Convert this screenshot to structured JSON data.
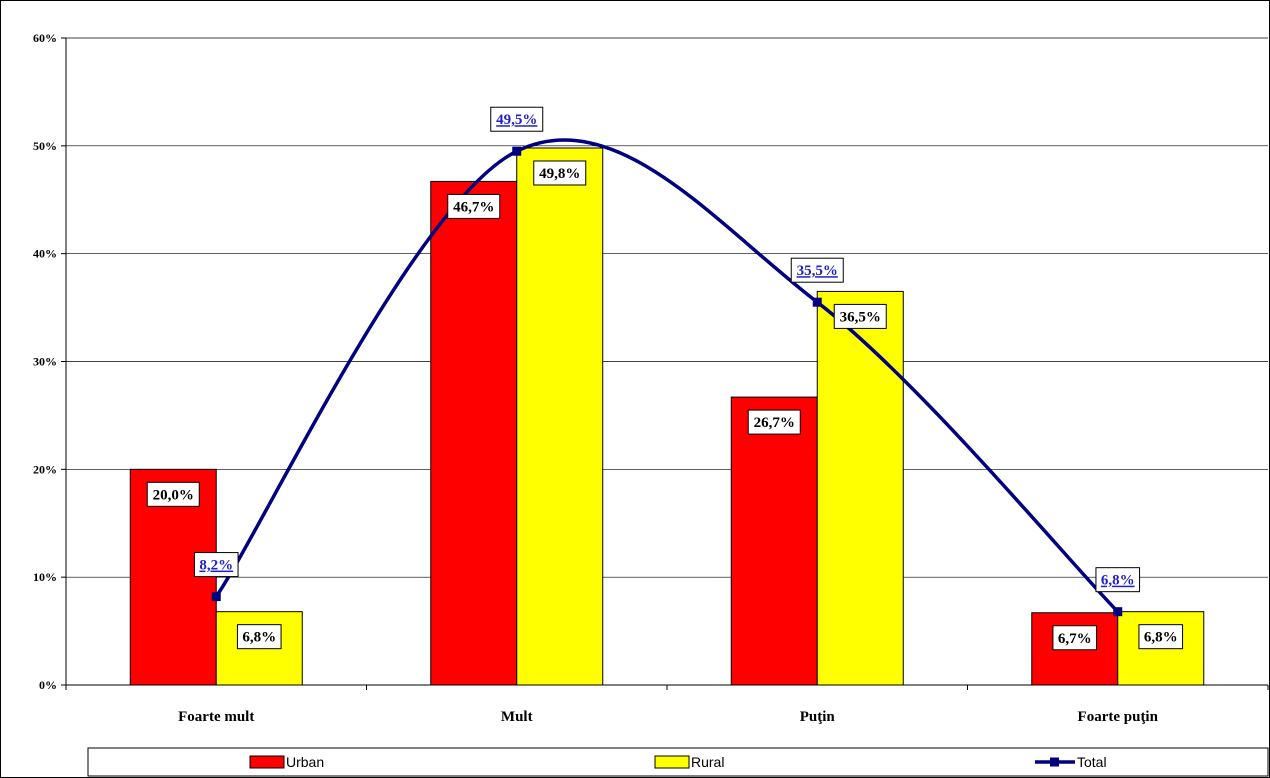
{
  "chart_data": {
    "type": "bar",
    "categories": [
      "Foarte mult",
      "Mult",
      "Puţin",
      "Foarte puţin"
    ],
    "yticks": [
      "0%",
      "10%",
      "20%",
      "30%",
      "40%",
      "50%",
      "60%"
    ],
    "ylim": [
      0,
      60
    ],
    "grid": true,
    "legend_position": "bottom",
    "series": [
      {
        "name": "Urban",
        "type": "bar",
        "color": "#ff0000",
        "values": [
          20.0,
          46.7,
          26.7,
          6.7
        ],
        "labels": [
          "20,0%",
          "46,7%",
          "26,7%",
          "6,7%"
        ]
      },
      {
        "name": "Rural",
        "type": "bar",
        "color": "#ffff00",
        "values": [
          6.8,
          49.8,
          36.5,
          6.8
        ],
        "labels": [
          "6,8%",
          "49,8%",
          "36,5%",
          "6,8%"
        ]
      },
      {
        "name": "Total",
        "type": "line",
        "color": "#000080",
        "values": [
          8.2,
          49.5,
          35.5,
          6.8
        ],
        "labels": [
          "8,2%",
          "49,5%",
          "35,5%",
          "6,8%"
        ]
      }
    ]
  }
}
